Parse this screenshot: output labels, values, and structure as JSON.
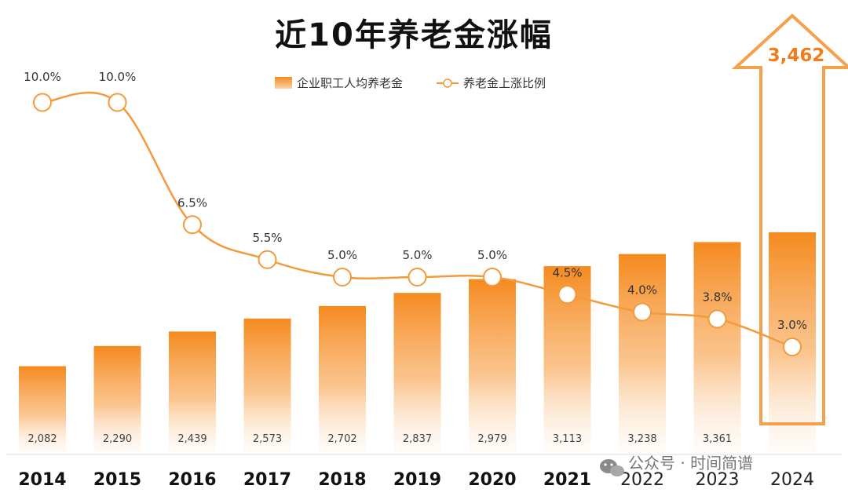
{
  "chart_data": {
    "type": "bar",
    "title": "近10年养老金涨幅",
    "categories": [
      "2014",
      "2015",
      "2016",
      "2017",
      "2018",
      "2019",
      "2020",
      "2021",
      "2022",
      "2023",
      "2024"
    ],
    "series": [
      {
        "name": "企业职工人均养老金",
        "kind": "bar",
        "values": [
          2082,
          2290,
          2439,
          2573,
          2702,
          2837,
          2979,
          3113,
          3238,
          3361,
          3462
        ],
        "labels": [
          "2,082",
          "2,290",
          "2,439",
          "2,573",
          "2,702",
          "2,837",
          "2,979",
          "3,113",
          "3,238",
          "3,361",
          ""
        ]
      },
      {
        "name": "养老金上涨比例",
        "kind": "line",
        "values": [
          10.0,
          10.0,
          6.5,
          5.5,
          5.0,
          5.0,
          5.0,
          4.5,
          4.0,
          3.8,
          3.0
        ],
        "labels": [
          "10.0%",
          "10.0%",
          "6.5%",
          "5.5%",
          "5.0%",
          "5.0%",
          "5.0%",
          "4.5%",
          "4.0%",
          "3.8%",
          "3.0%"
        ]
      }
    ],
    "highlight": {
      "category": "2024",
      "label": "3,462"
    },
    "legend_position": "top-center",
    "grid": false,
    "colors": {
      "bar": "#F58A1F",
      "line": "#F39A3C",
      "highlight": "#F07D1A"
    }
  },
  "watermark": {
    "text": "公众号 · 时间简谱"
  }
}
